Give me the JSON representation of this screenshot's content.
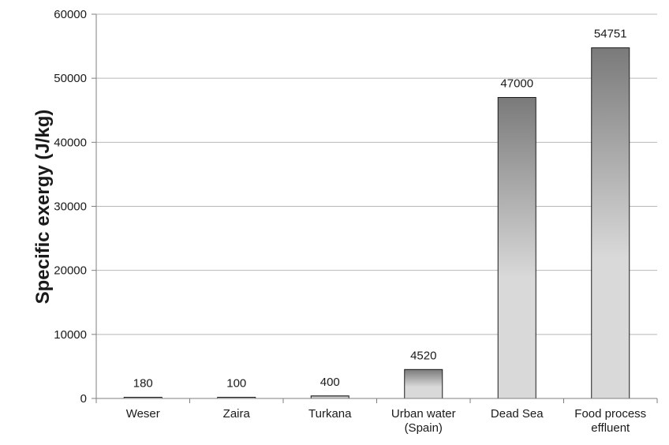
{
  "chart_data": {
    "type": "bar",
    "title": "",
    "xlabel": "",
    "ylabel": "Specific exergy (J/kg)",
    "categories": [
      [
        "Weser"
      ],
      [
        "Zaira"
      ],
      [
        "Turkana"
      ],
      [
        "Urban water",
        "(Spain)"
      ],
      [
        "Dead Sea"
      ],
      [
        "Food process",
        "effluent"
      ]
    ],
    "values": [
      180,
      100,
      400,
      4520,
      47000,
      54751
    ],
    "data_labels": [
      "180",
      "100",
      "400",
      "4520",
      "47000",
      "54751"
    ],
    "ylim": [
      0,
      60000
    ],
    "yticks": [
      0,
      10000,
      20000,
      30000,
      40000,
      50000,
      60000
    ],
    "ytick_labels": [
      "0",
      "10000",
      "20000",
      "30000",
      "40000",
      "50000",
      "60000"
    ],
    "grid": "horizontal",
    "legend": "none"
  },
  "colors": {
    "bar_top": "#7a7a7a",
    "bar_bottom": "#d9d9d9",
    "bar_stroke": "#1a1a1a",
    "grid": "#b8b8b8",
    "axis": "#7f7f7f"
  }
}
